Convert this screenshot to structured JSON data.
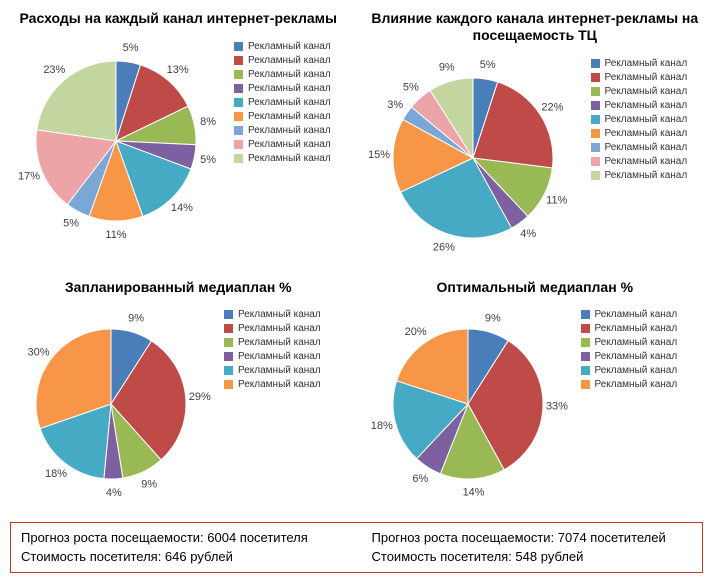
{
  "charts": [
    {
      "id": "chart1",
      "title": "Расходы на каждый канал интернет-рекламы",
      "title_fontsize": 14,
      "pie_diameter": 160,
      "label_fontsize": 11,
      "start_angle": -90,
      "slices": [
        {
          "label": "5%",
          "value": 5,
          "color": "#4a7ebb"
        },
        {
          "label": "13%",
          "value": 13,
          "color": "#be4b48"
        },
        {
          "label": "8%",
          "value": 8,
          "color": "#98b954"
        },
        {
          "label": "5%",
          "value": 5,
          "color": "#7d60a0"
        },
        {
          "label": "14%",
          "value": 14,
          "color": "#46aac5"
        },
        {
          "label": "11%",
          "value": 11,
          "color": "#f79646"
        },
        {
          "label": "5%",
          "value": 5,
          "color": "#7ba7d7"
        },
        {
          "label": "17%",
          "value": 17,
          "color": "#eca4a6"
        },
        {
          "label": "23%",
          "value": 23,
          "color": "#c4d6a0"
        }
      ],
      "legend": [
        {
          "label": "Рекламный канал",
          "color": "#4a7ebb"
        },
        {
          "label": "Рекламный канал",
          "color": "#be4b48"
        },
        {
          "label": "Рекламный канал",
          "color": "#98b954"
        },
        {
          "label": "Рекламный канал",
          "color": "#7d60a0"
        },
        {
          "label": "Рекламный канал",
          "color": "#46aac5"
        },
        {
          "label": "Рекламный канал",
          "color": "#f79646"
        },
        {
          "label": "Рекламный канал",
          "color": "#7ba7d7"
        },
        {
          "label": "Рекламный канал",
          "color": "#eca4a6"
        },
        {
          "label": "Рекламный канал",
          "color": "#c4d6a0"
        }
      ]
    },
    {
      "id": "chart2",
      "title": "Влияние каждого канала интернет-рекламы на посещаемость ТЦ",
      "title_fontsize": 14,
      "pie_diameter": 160,
      "label_fontsize": 11,
      "start_angle": -90,
      "slices": [
        {
          "label": "5%",
          "value": 5,
          "color": "#4a7ebb"
        },
        {
          "label": "22%",
          "value": 22,
          "color": "#be4b48"
        },
        {
          "label": "11%",
          "value": 11,
          "color": "#98b954"
        },
        {
          "label": "4%",
          "value": 4,
          "color": "#7d60a0"
        },
        {
          "label": "26%",
          "value": 26,
          "color": "#46aac5"
        },
        {
          "label": "15%",
          "value": 15,
          "color": "#f79646"
        },
        {
          "label": "3%",
          "value": 3,
          "color": "#7ba7d7"
        },
        {
          "label": "5%",
          "value": 5,
          "color": "#eca4a6"
        },
        {
          "label": "9%",
          "value": 9,
          "color": "#c4d6a0"
        }
      ],
      "legend": [
        {
          "label": "Рекламный канал",
          "color": "#4a7ebb"
        },
        {
          "label": "Рекламный канал",
          "color": "#be4b48"
        },
        {
          "label": "Рекламный канал",
          "color": "#98b954"
        },
        {
          "label": "Рекламный канал",
          "color": "#7d60a0"
        },
        {
          "label": "Рекламный канал",
          "color": "#46aac5"
        },
        {
          "label": "Рекламный канал",
          "color": "#f79646"
        },
        {
          "label": "Рекламный канал",
          "color": "#7ba7d7"
        },
        {
          "label": "Рекламный канал",
          "color": "#eca4a6"
        },
        {
          "label": "Рекламный канал",
          "color": "#c4d6a0"
        }
      ]
    },
    {
      "id": "chart3",
      "title": "Запланированный медиаплан %",
      "title_fontsize": 14,
      "pie_diameter": 150,
      "label_fontsize": 11,
      "start_angle": -90,
      "slices": [
        {
          "label": "9%",
          "value": 9,
          "color": "#4a7ebb"
        },
        {
          "label": "29%",
          "value": 29,
          "color": "#be4b48"
        },
        {
          "label": "9%",
          "value": 9,
          "color": "#98b954"
        },
        {
          "label": "4%",
          "value": 4,
          "color": "#7d60a0"
        },
        {
          "label": "18%",
          "value": 18,
          "color": "#46aac5"
        },
        {
          "label": "30%",
          "value": 30,
          "color": "#f79646"
        }
      ],
      "legend": [
        {
          "label": "Рекламный канал",
          "color": "#4a7ebb"
        },
        {
          "label": "Рекламный канал",
          "color": "#be4b48"
        },
        {
          "label": "Рекламный канал",
          "color": "#98b954"
        },
        {
          "label": "Рекламный канал",
          "color": "#7d60a0"
        },
        {
          "label": "Рекламный канал",
          "color": "#46aac5"
        },
        {
          "label": "Рекламный канал",
          "color": "#f79646"
        }
      ]
    },
    {
      "id": "chart4",
      "title": "Оптимальный медиаплан %",
      "title_fontsize": 14,
      "pie_diameter": 150,
      "label_fontsize": 11,
      "start_angle": -90,
      "slices": [
        {
          "label": "9%",
          "value": 9,
          "color": "#4a7ebb"
        },
        {
          "label": "33%",
          "value": 33,
          "color": "#be4b48"
        },
        {
          "label": "14%",
          "value": 14,
          "color": "#98b954"
        },
        {
          "label": "6%",
          "value": 6,
          "color": "#7d60a0"
        },
        {
          "label": "18%",
          "value": 18,
          "color": "#46aac5"
        },
        {
          "label": "20%",
          "value": 20,
          "color": "#f79646"
        }
      ],
      "legend": [
        {
          "label": "Рекламный канал",
          "color": "#4a7ebb"
        },
        {
          "label": "Рекламный канал",
          "color": "#be4b48"
        },
        {
          "label": "Рекламный канал",
          "color": "#98b954"
        },
        {
          "label": "Рекламный канал",
          "color": "#7d60a0"
        },
        {
          "label": "Рекламный канал",
          "color": "#46aac5"
        },
        {
          "label": "Рекламный канал",
          "color": "#f79646"
        }
      ]
    }
  ],
  "footer": {
    "border_color": "#c0392b",
    "left": {
      "line1": "Прогноз роста посещаемости: 6004 посетителя",
      "line2": "Стоимость посетителя: 646 рублей"
    },
    "right": {
      "line1": "Прогноз роста посещаемости: 7074 посетителей",
      "line2": "Стоимость посетителя: 548 рублей"
    }
  }
}
